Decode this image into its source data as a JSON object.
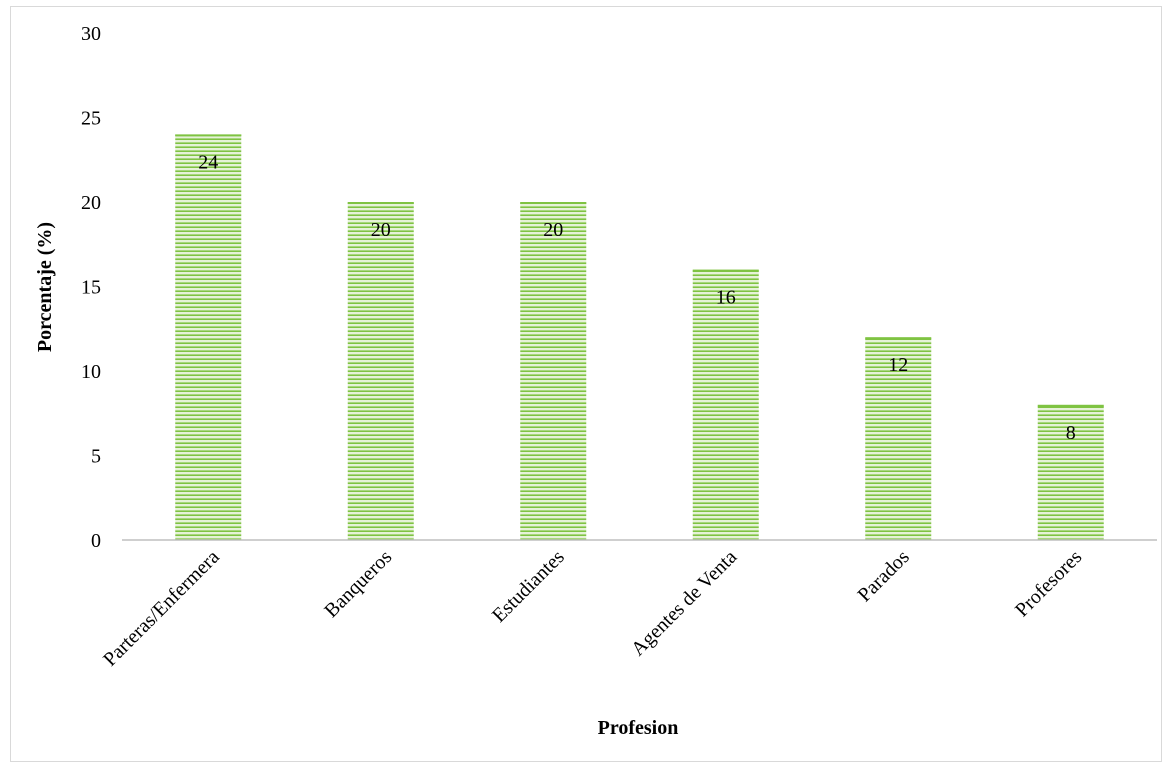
{
  "chart_data": {
    "type": "bar",
    "categories": [
      "Parteras/Enfermera",
      "Banqueros",
      "Estudiantes",
      "Agentes de Venta",
      "Parados",
      "Profesores"
    ],
    "values": [
      24,
      20,
      20,
      16,
      12,
      8
    ],
    "data_labels": [
      "24",
      "20",
      "20",
      "16",
      "12",
      "8"
    ],
    "title": "",
    "xlabel": "Profesion",
    "ylabel": "Porcentaje (%)",
    "ylim": [
      0,
      30
    ],
    "yticks": [
      0,
      5,
      10,
      15,
      20,
      25,
      30
    ],
    "grid": false,
    "legend": "none",
    "bar_color": "#7fc342",
    "bar_stripe_color": "#e6f2d8"
  }
}
